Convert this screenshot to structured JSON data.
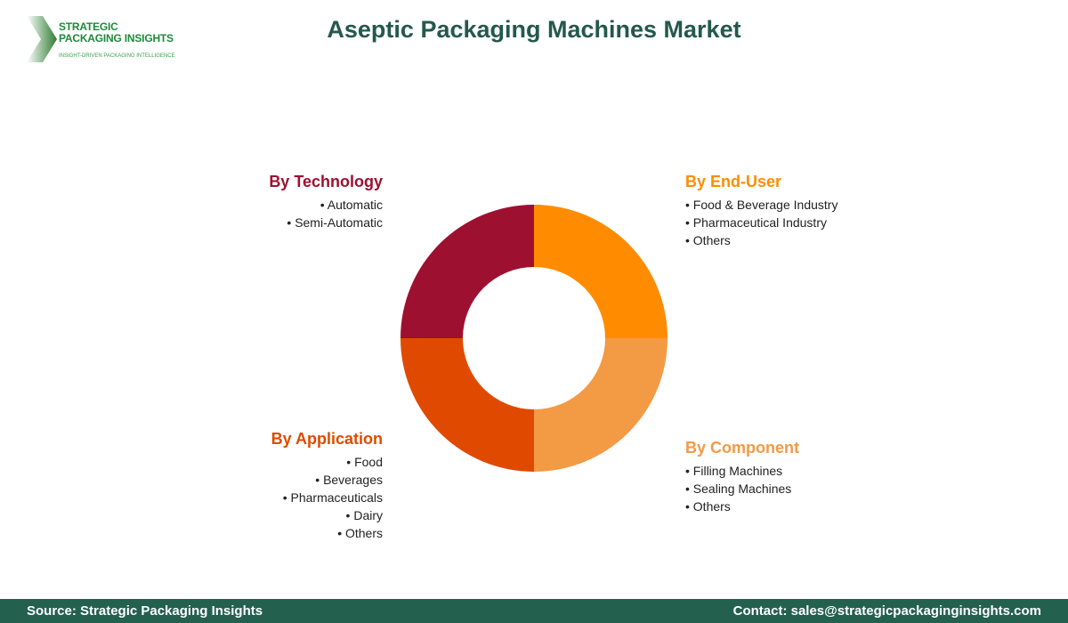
{
  "logo": {
    "line1": "STRATEGIC",
    "line2": "PACKAGING INSIGHTS",
    "tagline": "INSIGHT-DRIVEN PACKAGING INTELLIGENCE"
  },
  "title": "Aseptic Packaging Machines Market",
  "segments": [
    {
      "title": "By Technology",
      "color": "#9E1030",
      "items": [
        "Automatic",
        "Semi-Automatic"
      ]
    },
    {
      "title": "By End-User",
      "color": "#FF8C00",
      "items": [
        "Food & Beverage Industry",
        "Pharmaceutical Industry",
        "Others"
      ]
    },
    {
      "title": "By Application",
      "color": "#E04A00",
      "items": [
        "Food",
        "Beverages",
        "Pharmaceuticals",
        "Dairy",
        "Others"
      ]
    },
    {
      "title": "By Component",
      "color": "#F39A45",
      "items": [
        "Filling Machines",
        "Sealing Machines",
        "Others"
      ]
    }
  ],
  "footer": {
    "source": "Source: Strategic Packaging Insights",
    "contact": "Contact: sales@strategicpackaginginsights.com"
  }
}
